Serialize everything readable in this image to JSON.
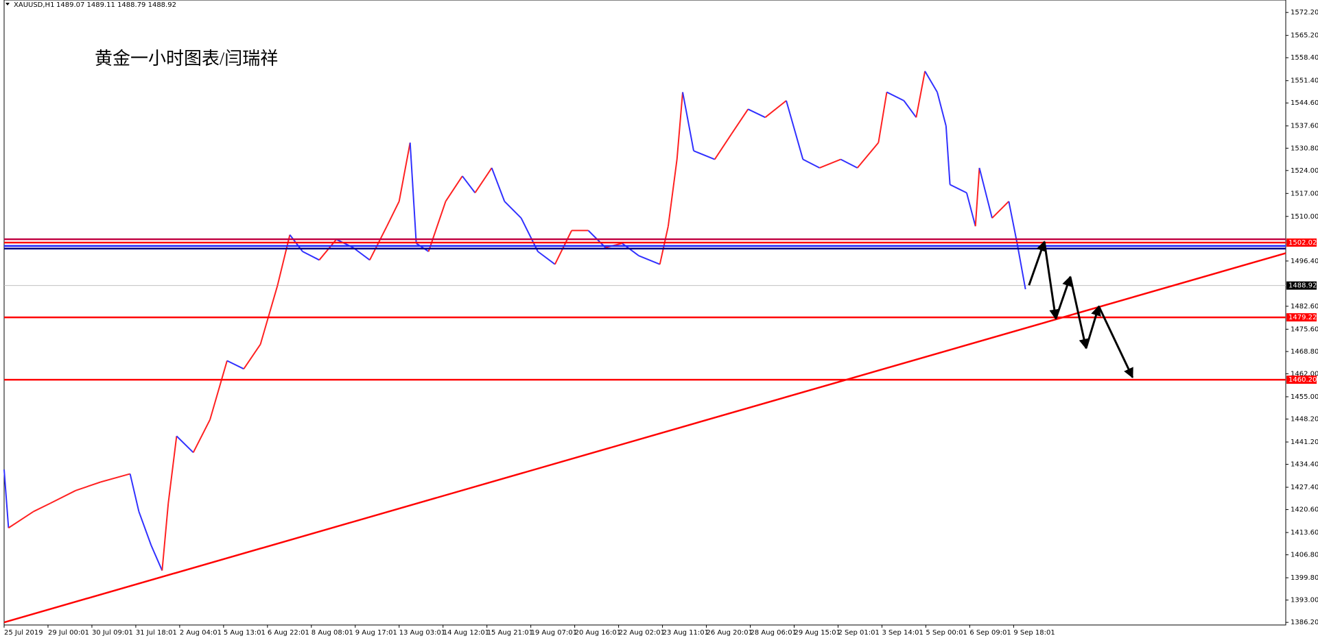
{
  "chart_data": {
    "type": "price",
    "symbol": "XAUUSD,H1",
    "ohlc": "1489.07 1489.11 1488.79 1488.92",
    "title": "黄金一小时图表/闫瑞祥",
    "xlim": [
      0,
      29.2
    ],
    "ylim": [
      1385.4,
      1576.0
    ],
    "xticks": [
      {
        "value": 0,
        "label": "25 Jul 2019"
      },
      {
        "value": 1,
        "label": "29 Jul 00:01"
      },
      {
        "value": 2,
        "label": "30 Jul 09:01"
      },
      {
        "value": 3,
        "label": "31 Jul 18:01"
      },
      {
        "value": 4,
        "label": "2 Aug 04:01"
      },
      {
        "value": 5,
        "label": "5 Aug 13:01"
      },
      {
        "value": 6,
        "label": "6 Aug 22:01"
      },
      {
        "value": 7,
        "label": "8 Aug 08:01"
      },
      {
        "value": 8,
        "label": "9 Aug 17:01"
      },
      {
        "value": 9,
        "label": "13 Aug 03:01"
      },
      {
        "value": 10,
        "label": "14 Aug 12:01"
      },
      {
        "value": 11,
        "label": "15 Aug 21:01"
      },
      {
        "value": 12,
        "label": "19 Aug 07:01"
      },
      {
        "value": 13,
        "label": "20 Aug 16:01"
      },
      {
        "value": 14,
        "label": "22 Aug 02:01"
      },
      {
        "value": 15,
        "label": "23 Aug 11:01"
      },
      {
        "value": 16,
        "label": "26 Aug 20:01"
      },
      {
        "value": 17,
        "label": "28 Aug 06:01"
      },
      {
        "value": 18,
        "label": "29 Aug 15:01"
      },
      {
        "value": 19,
        "label": "2 Sep 01:01"
      },
      {
        "value": 20,
        "label": "3 Sep 14:01"
      },
      {
        "value": 21,
        "label": "5 Sep 00:01"
      },
      {
        "value": 22,
        "label": "6 Sep 09:01"
      },
      {
        "value": 23,
        "label": "9 Sep 18:01"
      }
    ],
    "yticks": [
      {
        "value": 1572.2,
        "label": "1572.20"
      },
      {
        "value": 1565.2,
        "label": "1565.20"
      },
      {
        "value": 1558.4,
        "label": "1558.40"
      },
      {
        "value": 1551.4,
        "label": "1551.40"
      },
      {
        "value": 1544.6,
        "label": "1544.60"
      },
      {
        "value": 1537.6,
        "label": "1537.60"
      },
      {
        "value": 1530.8,
        "label": "1530.80"
      },
      {
        "value": 1524.0,
        "label": "1524.00"
      },
      {
        "value": 1517.0,
        "label": "1517.00"
      },
      {
        "value": 1510.0,
        "label": "1510.00"
      },
      {
        "value": 1496.4,
        "label": "1496.40"
      },
      {
        "value": 1482.6,
        "label": "1482.60"
      },
      {
        "value": 1475.6,
        "label": "1475.60"
      },
      {
        "value": 1468.8,
        "label": "1468.80"
      },
      {
        "value": 1462.0,
        "label": "1462.00"
      },
      {
        "value": 1455.0,
        "label": "1455.00"
      },
      {
        "value": 1448.2,
        "label": "1448.20"
      },
      {
        "value": 1441.2,
        "label": "1441.20"
      },
      {
        "value": 1434.4,
        "label": "1434.40"
      },
      {
        "value": 1427.4,
        "label": "1427.40"
      },
      {
        "value": 1420.6,
        "label": "1420.60"
      },
      {
        "value": 1413.6,
        "label": "1413.60"
      },
      {
        "value": 1406.8,
        "label": "1406.80"
      },
      {
        "value": 1399.8,
        "label": "1399.80"
      },
      {
        "value": 1393.0,
        "label": "1393.00"
      },
      {
        "value": 1386.2,
        "label": "1386.20"
      }
    ],
    "series": [
      {
        "name": "XAUUSD",
        "up_color": "#ff2020",
        "down_color": "#3030ff",
        "x": [
          0,
          0.1,
          0.67,
          1.05,
          1.63,
          2.2,
          2.87,
          3.07,
          3.35,
          3.6,
          3.74,
          3.93,
          4.31,
          4.69,
          5.08,
          5.46,
          5.84,
          6.23,
          6.51,
          6.8,
          7.18,
          7.57,
          7.95,
          8.33,
          8.72,
          9.0,
          9.25,
          9.39,
          9.67,
          10.06,
          10.44,
          10.73,
          11.11,
          11.4,
          11.78,
          12.16,
          12.55,
          12.93,
          13.31,
          13.7,
          14.08,
          14.46,
          14.94,
          15.13,
          15.33,
          15.46,
          15.71,
          16.19,
          16.57,
          16.95,
          17.34,
          17.82,
          18.2,
          18.58,
          19.06,
          19.44,
          19.92,
          20.11,
          20.5,
          20.78,
          20.98,
          21.26,
          21.46,
          21.55,
          21.93,
          22.13,
          22.22,
          22.51,
          22.89,
          23.08,
          23.27
        ],
        "values": [
          1432.8,
          1415,
          1420,
          1422.5,
          1426.4,
          1429,
          1431.5,
          1420,
          1409.7,
          1402,
          1422.5,
          1443,
          1438,
          1448,
          1466,
          1463.5,
          1471,
          1489,
          1504.4,
          1499.3,
          1496.7,
          1503,
          1500.5,
          1496.7,
          1507,
          1514.6,
          1532.5,
          1501.8,
          1499.3,
          1514.6,
          1522.3,
          1517.2,
          1524.8,
          1514.6,
          1509.5,
          1499.3,
          1495.4,
          1505.7,
          1505.7,
          1500.5,
          1501.8,
          1498,
          1495.4,
          1507,
          1527.4,
          1547.9,
          1530,
          1527.4,
          1535.1,
          1542.7,
          1540.2,
          1545.3,
          1527.4,
          1524.8,
          1527.4,
          1524.8,
          1532.5,
          1547.9,
          1545.3,
          1540.2,
          1554.3,
          1547.9,
          1537.6,
          1519.7,
          1517.2,
          1507,
          1524.8,
          1509.5,
          1514.6,
          1501.8,
          1487.8
        ]
      }
    ],
    "last_price": 1488.92,
    "levels": [
      {
        "value": 1503.04,
        "color": "#c00040"
      },
      {
        "value": 1502.02,
        "label": "1502.02",
        "color": "#ff0000"
      },
      {
        "value": 1501.0,
        "color": "#2020ff"
      },
      {
        "value": 1500.2,
        "color": "#000080"
      },
      {
        "value": 1479.22,
        "label": "1479.22",
        "color": "#ff0000"
      },
      {
        "value": 1460.2,
        "label": "1460.20",
        "color": "#ff0000"
      }
    ],
    "trendline": {
      "color": "#ff0000",
      "x": [
        0,
        29.2
      ],
      "values": [
        1386.2,
        1498.8
      ]
    },
    "forecast": {
      "color": "#000000",
      "x": [
        23.35,
        23.7,
        23.96,
        24.29,
        24.65,
        24.94,
        25.71
      ],
      "values": [
        1489,
        1502.3,
        1478.8,
        1491.6,
        1469.8,
        1482.6,
        1460.9
      ]
    }
  }
}
